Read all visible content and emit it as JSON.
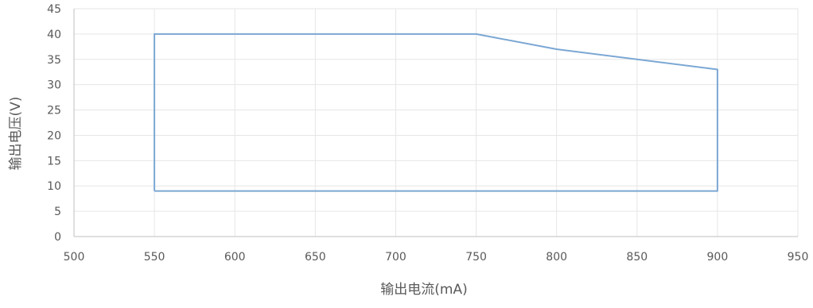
{
  "chart_data": {
    "type": "line",
    "title": "",
    "xlabel": "输出电流(mA)",
    "ylabel": "输出电压(V)",
    "xlim": [
      500,
      950
    ],
    "ylim": [
      0,
      45
    ],
    "x_ticks": [
      500,
      550,
      600,
      650,
      700,
      750,
      800,
      850,
      900,
      950
    ],
    "y_ticks": [
      0,
      5,
      10,
      15,
      20,
      25,
      30,
      35,
      40,
      45
    ],
    "grid": true,
    "legend": "none",
    "series": [
      {
        "x": [
          550,
          550,
          750,
          800,
          900,
          900,
          550
        ],
        "y": [
          9,
          40,
          40,
          37,
          33,
          9,
          9
        ],
        "color": "#7ba7d4"
      }
    ],
    "colors": {
      "line": "#7ba7d4",
      "grid": "#e6e6e6",
      "axis": "#bfbfbf",
      "text": "#595959"
    }
  }
}
